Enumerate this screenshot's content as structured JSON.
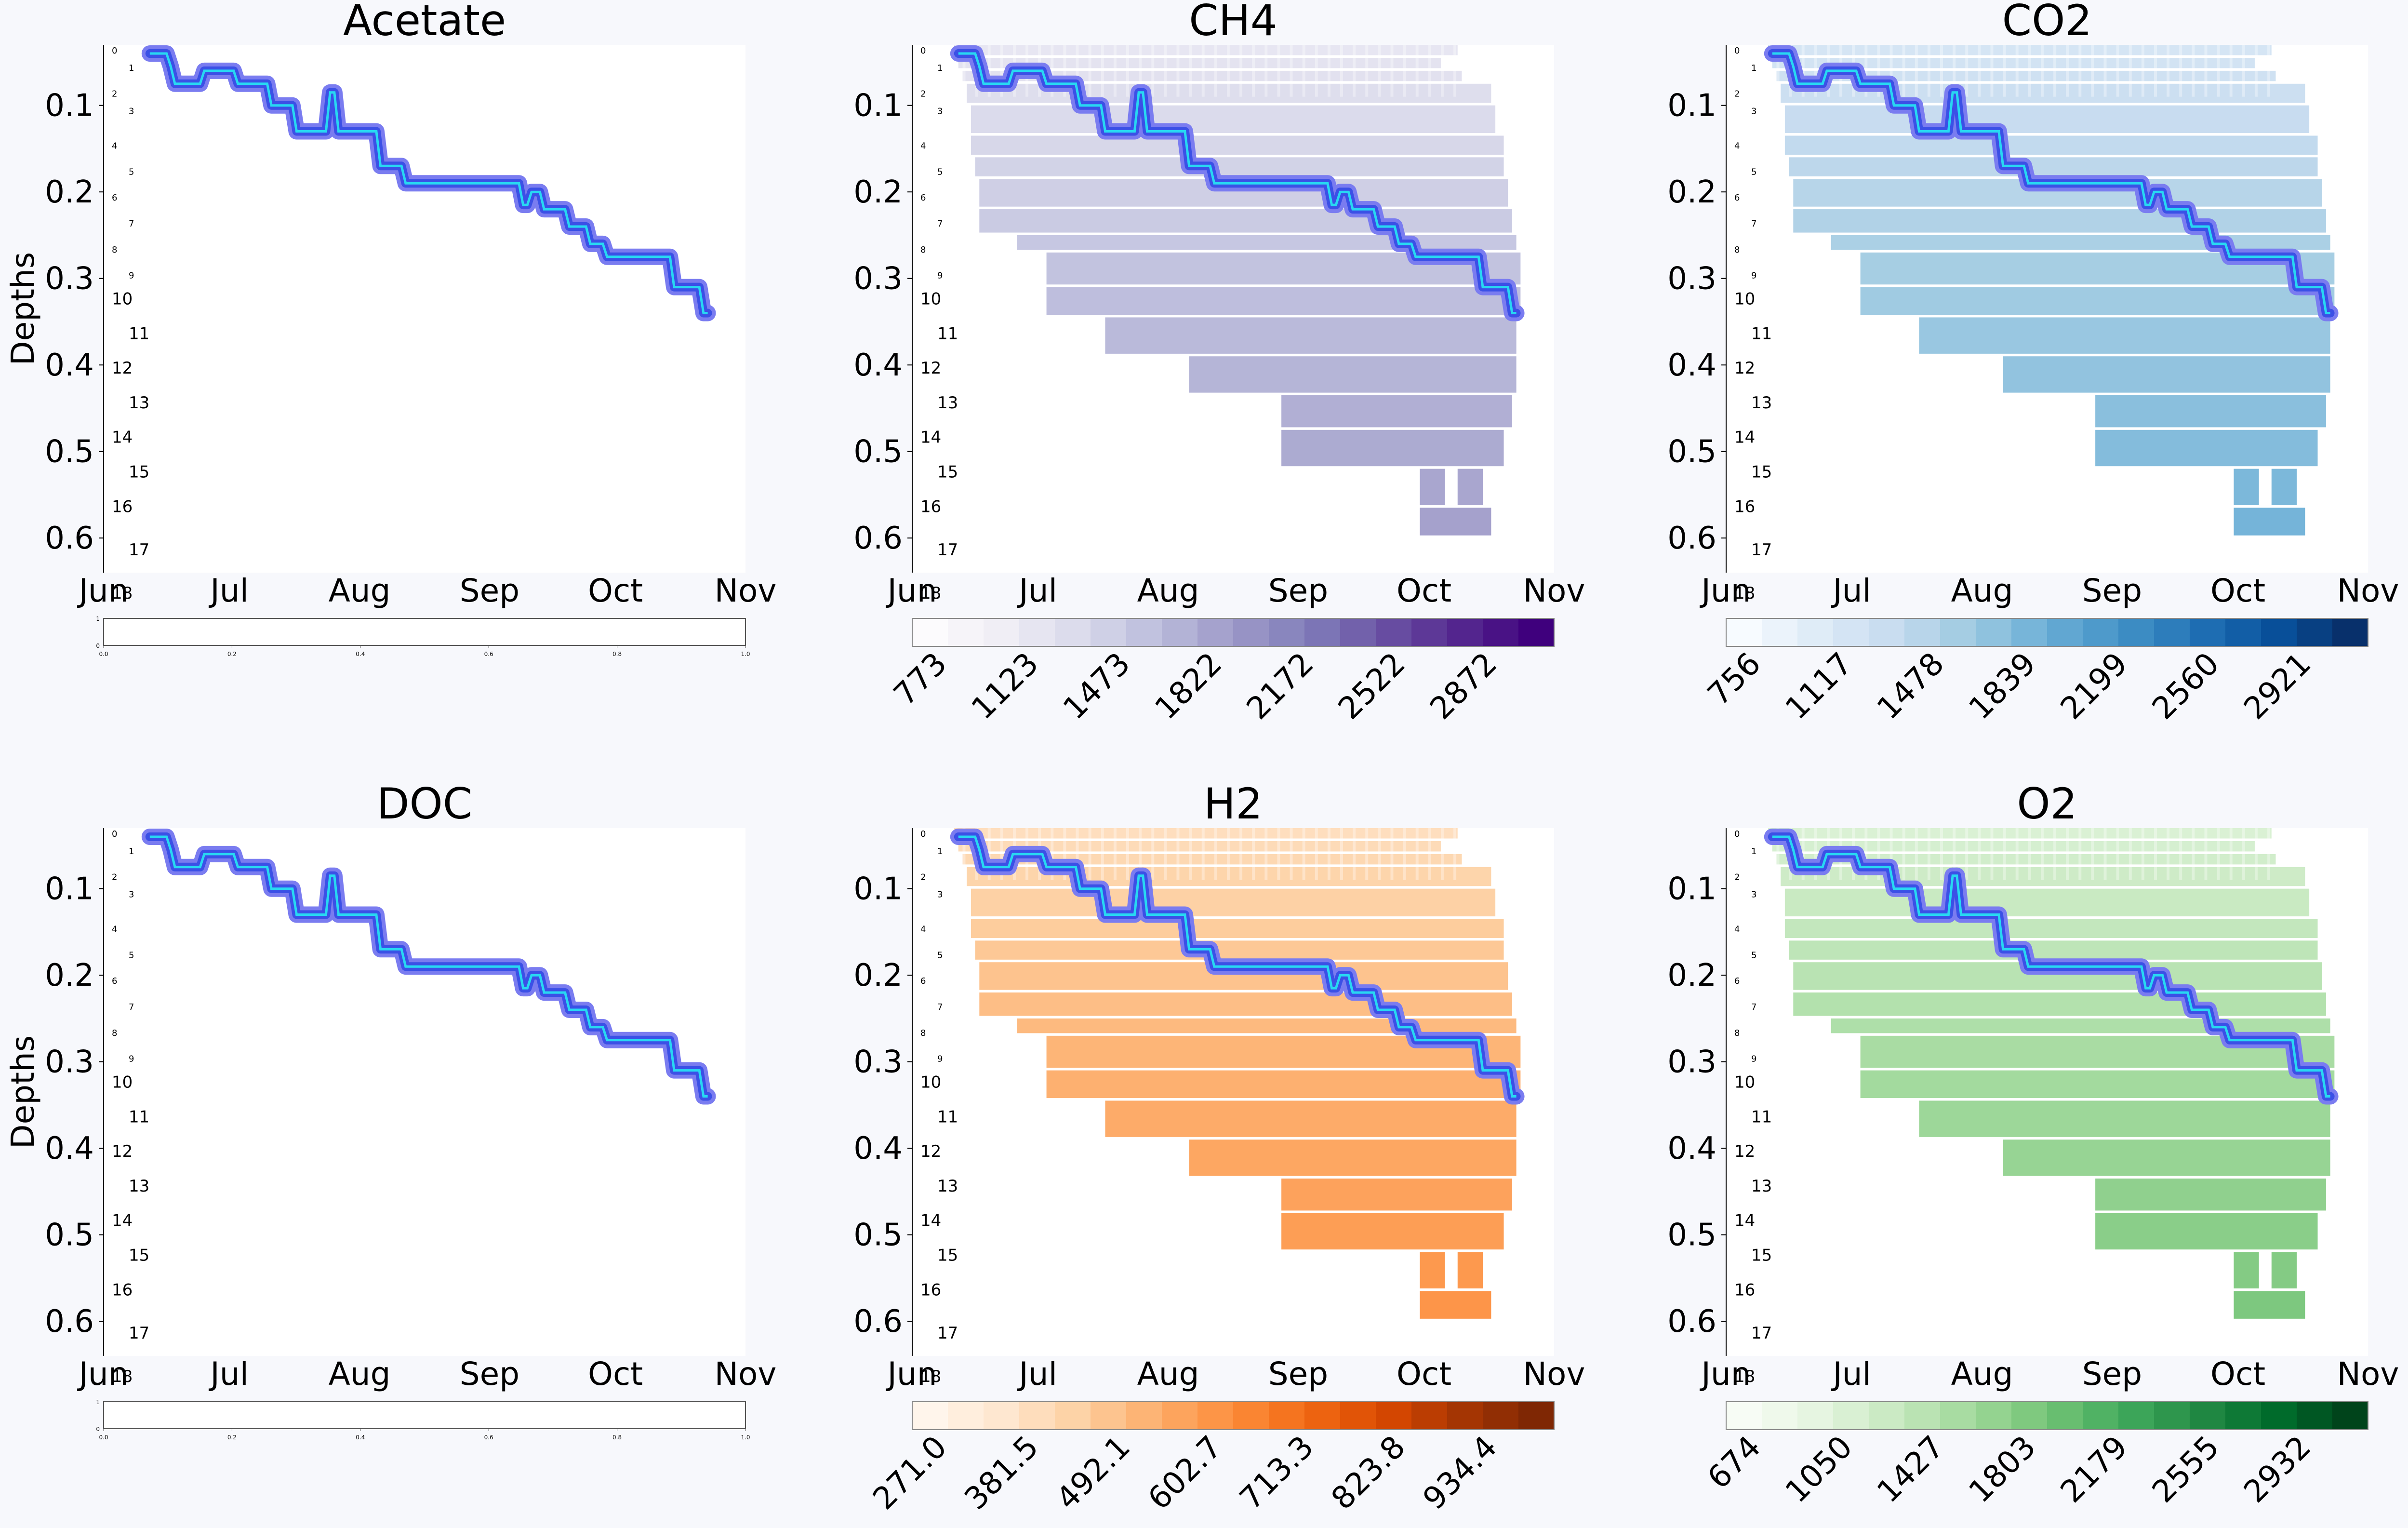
{
  "figure": {
    "background": "#f7f8fc"
  },
  "chart_data": [
    {
      "type": "heatmap",
      "title": "Acetate",
      "ylabel": "Depths",
      "colormap": null,
      "colorbar": {
        "ticks": [
          "0.0",
          "0.2",
          "0.4",
          "0.6",
          "0.8",
          "1.0"
        ],
        "yticks": [
          "0",
          "1"
        ]
      }
    },
    {
      "type": "heatmap",
      "title": "CH4",
      "ylabel": "",
      "colormap": "Purples",
      "colorbar": {
        "ticks": [
          "773",
          "1123",
          "1473",
          "1822",
          "2172",
          "2522",
          "2872"
        ]
      }
    },
    {
      "type": "heatmap",
      "title": "CO2",
      "ylabel": "",
      "colormap": "Blues",
      "colorbar": {
        "ticks": [
          "756",
          "1117",
          "1478",
          "1839",
          "2199",
          "2560",
          "2921"
        ]
      }
    },
    {
      "type": "heatmap",
      "title": "DOC",
      "ylabel": "Depths",
      "colormap": null,
      "colorbar": {
        "ticks": [
          "0.0",
          "0.2",
          "0.4",
          "0.6",
          "0.8",
          "1.0"
        ],
        "yticks": [
          "0",
          "1"
        ]
      }
    },
    {
      "type": "heatmap",
      "title": "H2",
      "ylabel": "",
      "colormap": "Oranges",
      "colorbar": {
        "ticks": [
          "271.0",
          "381.5",
          "492.1",
          "602.7",
          "713.3",
          "823.8",
          "934.4"
        ]
      }
    },
    {
      "type": "heatmap",
      "title": "O2",
      "ylabel": "",
      "colormap": "Greens",
      "colorbar": {
        "ticks": [
          "674",
          "1050",
          "1427",
          "1803",
          "2179",
          "2555",
          "2932"
        ]
      }
    }
  ],
  "shared": {
    "x_ticks": [
      "Jun",
      "Jul",
      "Aug",
      "Sep",
      "Oct",
      "Nov"
    ],
    "x_tick_days": [
      0,
      30,
      61,
      92,
      122,
      153
    ],
    "xlim_days": [
      0,
      153
    ],
    "y_ticks": [
      "0.1",
      "0.2",
      "0.3",
      "0.4",
      "0.5",
      "0.6"
    ],
    "ylim": [
      0.03,
      0.64
    ],
    "layer_labels": [
      "0",
      "1",
      "2",
      "3",
      "4",
      "5",
      "6",
      "7",
      "8",
      "9",
      "10",
      "11",
      "12",
      "13",
      "14",
      "15",
      "16",
      "17",
      "18"
    ],
    "layer_depths": [
      0.04,
      0.06,
      0.09,
      0.11,
      0.15,
      0.18,
      0.21,
      0.24,
      0.27,
      0.3,
      0.33,
      0.37,
      0.41,
      0.45,
      0.49,
      0.53,
      0.57,
      0.62,
      0.67
    ],
    "layer_top_depth": [
      0.02,
      0.045,
      0.06,
      0.075,
      0.1,
      0.135,
      0.16,
      0.185,
      0.22,
      0.25,
      0.27,
      0.31,
      0.345,
      0.39,
      0.435,
      0.475,
      0.52,
      0.565,
      0.6
    ],
    "layer_start_day": [
      10,
      11,
      12,
      13,
      14,
      14,
      15,
      16,
      16,
      25,
      32,
      32,
      46,
      66,
      88,
      88,
      121,
      121,
      121
    ],
    "layer_end_day": [
      130,
      126,
      131,
      138,
      139,
      141,
      141,
      142,
      143,
      144,
      145,
      145,
      144,
      144,
      143,
      141,
      128,
      138,
      0
    ],
    "thaw_front": {
      "days": [
        11,
        15,
        16,
        17,
        20,
        23,
        24,
        31,
        32,
        33,
        39,
        40,
        45,
        46,
        53,
        54,
        55,
        56,
        58,
        60,
        65,
        66,
        71,
        72,
        79,
        80,
        82,
        84,
        99,
        100,
        101,
        102,
        104,
        105,
        110,
        111,
        115,
        116,
        119,
        120,
        130,
        131,
        135,
        136,
        141,
        142,
        143,
        144
      ],
      "depths": [
        0.04,
        0.04,
        0.055,
        0.075,
        0.075,
        0.075,
        0.06,
        0.06,
        0.075,
        0.075,
        0.075,
        0.1,
        0.1,
        0.13,
        0.13,
        0.085,
        0.085,
        0.13,
        0.13,
        0.13,
        0.13,
        0.17,
        0.17,
        0.19,
        0.19,
        0.19,
        0.19,
        0.19,
        0.19,
        0.215,
        0.215,
        0.2,
        0.2,
        0.22,
        0.22,
        0.24,
        0.24,
        0.26,
        0.26,
        0.275,
        0.275,
        0.275,
        0.275,
        0.31,
        0.31,
        0.31,
        0.34,
        0.34
      ]
    }
  }
}
